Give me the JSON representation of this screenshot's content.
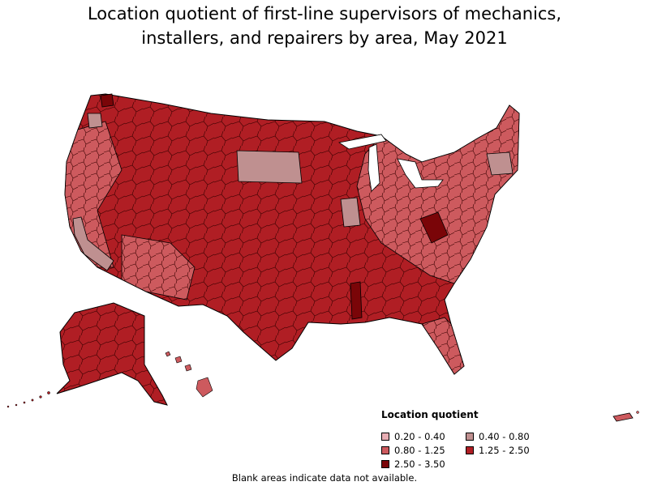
{
  "title_lines": [
    "Location quotient of first-line supervisors of mechanics,",
    "installers, and repairers by area, May 2021"
  ],
  "legend": {
    "title": "Location quotient",
    "items": [
      {
        "label": "0.20 - 0.40",
        "color": "#e8aeb4"
      },
      {
        "label": "0.40 - 0.80",
        "color": "#bf9090"
      },
      {
        "label": "0.80 - 1.25",
        "color": "#cd5a5e"
      },
      {
        "label": "1.25 - 2.50",
        "color": "#b01e24"
      },
      {
        "label": "2.50 - 3.50",
        "color": "#7a0508"
      }
    ]
  },
  "footnote": "Blank areas indicate data not available."
}
